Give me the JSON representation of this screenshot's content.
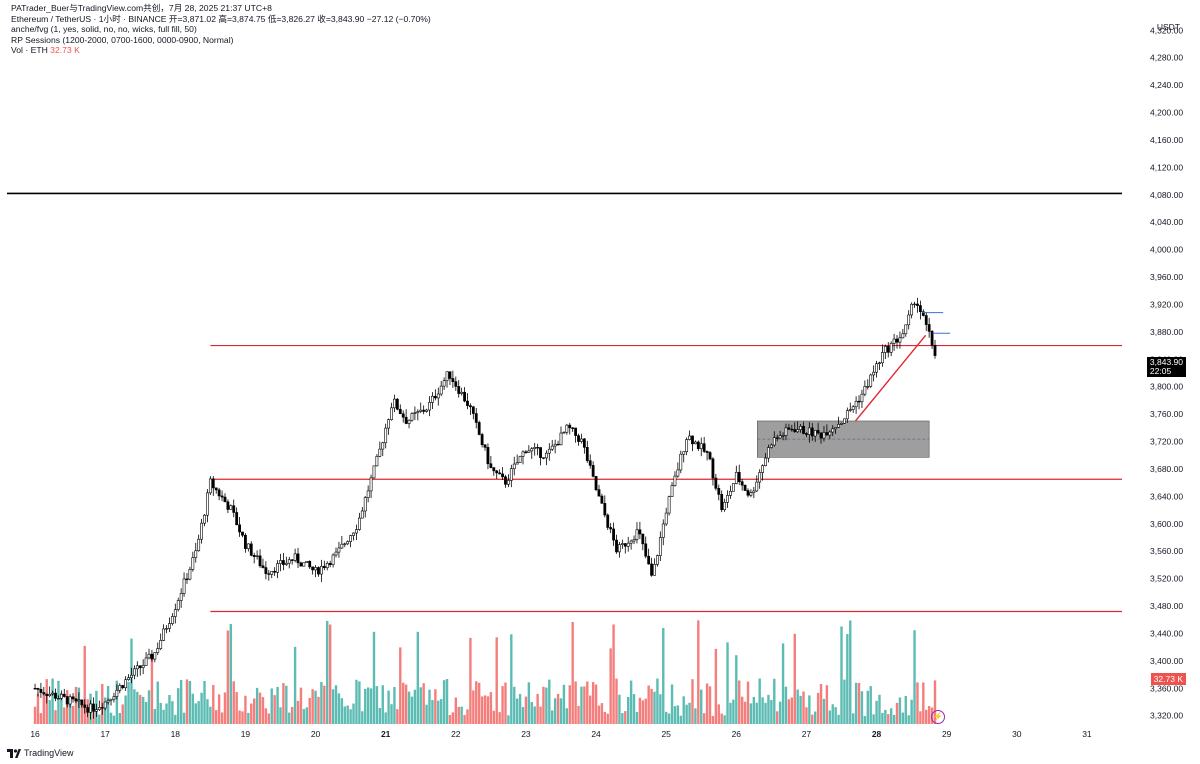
{
  "header": {
    "title_line": "PATrader_Buer与TradingView.com共创，7月 28, 2025 21:37 UTC+8",
    "symbol_line": "Ethereum / TetherUS · 1小时 · BINANCE  开=3,871.02  高=3,874.75  低=3,826.27  收=3,843.90  −27.12 (−0.70%)",
    "indicator_1": "anche/fvg (1, yes, solid, no, no, wicks, full fill, 50)",
    "indicator_2": "RP Sessions (1200-2000, 0700-1600, 0000-0900, Normal)",
    "volume_label": "Vol · ETH",
    "volume_value": "32.73 K"
  },
  "price_axis": {
    "unit": "USDT",
    "current_price": "3,843.90",
    "countdown": "22:05",
    "volume_tag": "32.73 K"
  },
  "branding": {
    "logo_text": "TradingView"
  },
  "colors": {
    "up": "#26a69a",
    "down": "#ef5350",
    "candle": "#000000",
    "level_line": "#e0262f",
    "zone": "#9e9e9e",
    "background": "#ffffff"
  },
  "chart_data": {
    "type": "candlestick",
    "x_ticks": [
      {
        "label": "16",
        "day": 16
      },
      {
        "label": "17",
        "day": 17
      },
      {
        "label": "18",
        "day": 18
      },
      {
        "label": "19",
        "day": 19
      },
      {
        "label": "20",
        "day": 20
      },
      {
        "label": "21",
        "day": 21,
        "bold": true
      },
      {
        "label": "22",
        "day": 22
      },
      {
        "label": "23",
        "day": 23
      },
      {
        "label": "24",
        "day": 24
      },
      {
        "label": "25",
        "day": 25
      },
      {
        "label": "26",
        "day": 26
      },
      {
        "label": "27",
        "day": 27
      },
      {
        "label": "28",
        "day": 28,
        "bold": true
      },
      {
        "label": "29",
        "day": 29
      },
      {
        "label": "30",
        "day": 30
      },
      {
        "label": "31",
        "day": 31
      }
    ],
    "x_range_days": [
      15.6,
      31.5
    ],
    "y_ticks": [
      4320,
      4280,
      4240,
      4200,
      4160,
      4120,
      4080,
      4040,
      4000,
      3960,
      3920,
      3880,
      3840,
      3800,
      3760,
      3720,
      3680,
      3640,
      3600,
      3560,
      3520,
      3480,
      3440,
      3400,
      3360,
      3320
    ],
    "y_range": [
      4335,
      3305
    ],
    "price_path": [
      [
        16.0,
        3360
      ],
      [
        16.4,
        3345
      ],
      [
        16.8,
        3330
      ],
      [
        17.0,
        3340
      ],
      [
        17.3,
        3372
      ],
      [
        17.7,
        3410
      ],
      [
        18.0,
        3480
      ],
      [
        18.3,
        3560
      ],
      [
        18.5,
        3660
      ],
      [
        18.8,
        3620
      ],
      [
        19.0,
        3570
      ],
      [
        19.3,
        3530
      ],
      [
        19.7,
        3550
      ],
      [
        20.0,
        3530
      ],
      [
        20.3,
        3555
      ],
      [
        20.6,
        3600
      ],
      [
        20.9,
        3700
      ],
      [
        21.1,
        3780
      ],
      [
        21.3,
        3750
      ],
      [
        21.6,
        3770
      ],
      [
        21.9,
        3820
      ],
      [
        22.2,
        3770
      ],
      [
        22.5,
        3680
      ],
      [
        22.7,
        3660
      ],
      [
        23.0,
        3710
      ],
      [
        23.3,
        3700
      ],
      [
        23.6,
        3740
      ],
      [
        23.8,
        3720
      ],
      [
        24.0,
        3650
      ],
      [
        24.3,
        3560
      ],
      [
        24.6,
        3590
      ],
      [
        24.8,
        3520
      ],
      [
        25.0,
        3620
      ],
      [
        25.3,
        3730
      ],
      [
        25.6,
        3700
      ],
      [
        25.8,
        3620
      ],
      [
        26.0,
        3670
      ],
      [
        26.2,
        3640
      ],
      [
        26.5,
        3720
      ],
      [
        26.8,
        3740
      ],
      [
        27.2,
        3730
      ],
      [
        27.5,
        3750
      ],
      [
        27.8,
        3790
      ],
      [
        28.1,
        3850
      ],
      [
        28.4,
        3880
      ],
      [
        28.55,
        3930
      ],
      [
        28.7,
        3890
      ],
      [
        28.85,
        3843.9
      ]
    ],
    "series": [
      {
        "name": "Open",
        "values": [
          3871.02
        ]
      },
      {
        "name": "High",
        "values": [
          3874.75
        ]
      },
      {
        "name": "Low",
        "values": [
          3826.27
        ]
      },
      {
        "name": "Close",
        "values": [
          3843.9
        ]
      }
    ],
    "horizontal_levels": [
      {
        "price": 4082,
        "color": "#000000",
        "from_day": 15.6
      },
      {
        "price": 3860,
        "color": "#e0262f",
        "from_day": 18.5
      },
      {
        "price": 3665,
        "color": "#e0262f",
        "from_day": 18.5
      },
      {
        "price": 3472,
        "color": "#e0262f",
        "from_day": 18.5
      }
    ],
    "zone": {
      "from_day": 26.3,
      "to_day": 28.75,
      "high": 3750,
      "low": 3697
    },
    "trendline": [
      {
        "day": 27.7,
        "price": 3750
      },
      {
        "day": 28.7,
        "price": 3875
      }
    ],
    "volume": {
      "label": "Vol · ETH",
      "last": "32.73 K"
    }
  }
}
